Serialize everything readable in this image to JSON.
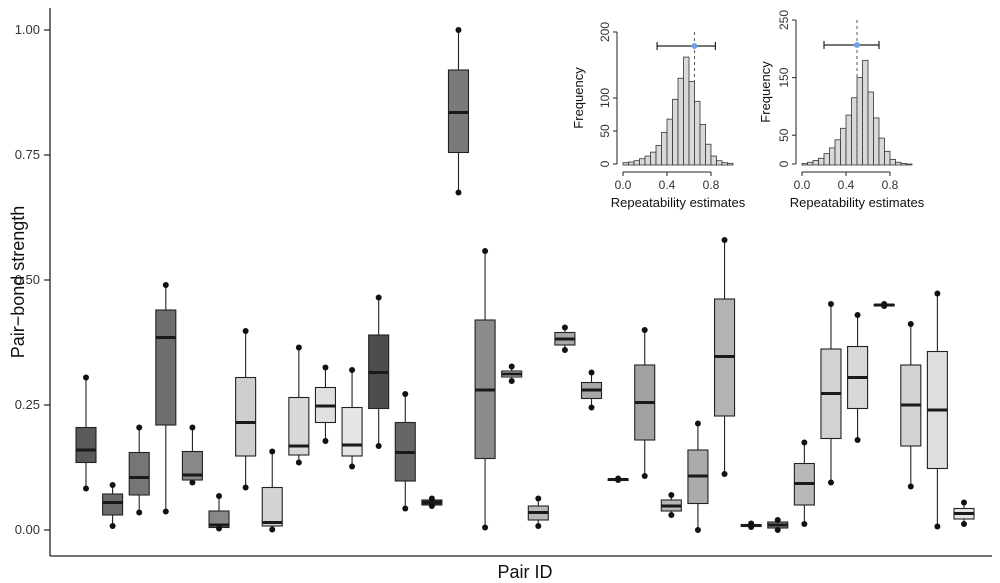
{
  "chart_data": [
    {
      "type": "boxplot",
      "title": "",
      "xlabel": "Pair ID",
      "ylabel": "Pair−bond strength",
      "ylim": [
        0,
        1
      ],
      "y_ticks": [
        "0.00",
        "0.25",
        "0.50",
        "0.75",
        "1.00"
      ],
      "grid": false,
      "boxes": [
        {
          "color": "#595959",
          "whisker_low": 0.083,
          "q1": 0.135,
          "median": 0.16,
          "q3": 0.205,
          "whisker_high": 0.305
        },
        {
          "color": "#6b6b6b",
          "whisker_low": 0.008,
          "q1": 0.03,
          "median": 0.055,
          "q3": 0.072,
          "whisker_high": 0.09
        },
        {
          "color": "#767676",
          "whisker_low": 0.035,
          "q1": 0.07,
          "median": 0.105,
          "q3": 0.155,
          "whisker_high": 0.205
        },
        {
          "color": "#6e6e6e",
          "whisker_low": 0.037,
          "q1": 0.21,
          "median": 0.385,
          "q3": 0.44,
          "whisker_high": 0.49
        },
        {
          "color": "#888888",
          "whisker_low": 0.095,
          "q1": 0.1,
          "median": 0.11,
          "q3": 0.157,
          "whisker_high": 0.205
        },
        {
          "color": "#888888",
          "whisker_low": 0.003,
          "q1": 0.005,
          "median": 0.01,
          "q3": 0.038,
          "whisker_high": 0.068
        },
        {
          "color": "#cfcfcf",
          "whisker_low": 0.085,
          "q1": 0.148,
          "median": 0.215,
          "q3": 0.305,
          "whisker_high": 0.398
        },
        {
          "color": "#d4d4d4",
          "whisker_low": 0.001,
          "q1": 0.008,
          "median": 0.015,
          "q3": 0.085,
          "whisker_high": 0.157
        },
        {
          "color": "#d8d8d8",
          "whisker_low": 0.135,
          "q1": 0.15,
          "median": 0.168,
          "q3": 0.265,
          "whisker_high": 0.365
        },
        {
          "color": "#e0e0e0",
          "whisker_low": 0.178,
          "q1": 0.215,
          "median": 0.248,
          "q3": 0.285,
          "whisker_high": 0.325
        },
        {
          "color": "#e6e6e6",
          "whisker_low": 0.127,
          "q1": 0.148,
          "median": 0.17,
          "q3": 0.245,
          "whisker_high": 0.32
        },
        {
          "color": "#4d4d4d",
          "whisker_low": 0.168,
          "q1": 0.243,
          "median": 0.315,
          "q3": 0.39,
          "whisker_high": 0.465
        },
        {
          "color": "#666666",
          "whisker_low": 0.043,
          "q1": 0.098,
          "median": 0.155,
          "q3": 0.215,
          "whisker_high": 0.272
        },
        {
          "color": "#333333",
          "whisker_low": 0.048,
          "q1": 0.05,
          "median": 0.055,
          "q3": 0.06,
          "whisker_high": 0.063
        },
        {
          "color": "#7a7a7a",
          "whisker_low": 0.675,
          "q1": 0.755,
          "median": 0.835,
          "q3": 0.92,
          "whisker_high": 1.0
        },
        {
          "color": "#8c8c8c",
          "whisker_low": 0.005,
          "q1": 0.143,
          "median": 0.28,
          "q3": 0.42,
          "whisker_high": 0.558
        },
        {
          "color": "#c8c8c8",
          "whisker_low": 0.298,
          "q1": 0.306,
          "median": 0.312,
          "q3": 0.318,
          "whisker_high": 0.327
        },
        {
          "color": "#b8b8b8",
          "whisker_low": 0.008,
          "q1": 0.02,
          "median": 0.035,
          "q3": 0.048,
          "whisker_high": 0.063
        },
        {
          "color": "#a8a8a8",
          "whisker_low": 0.36,
          "q1": 0.37,
          "median": 0.382,
          "q3": 0.395,
          "whisker_high": 0.405
        },
        {
          "color": "#a8a8a8",
          "whisker_low": 0.245,
          "q1": 0.263,
          "median": 0.28,
          "q3": 0.295,
          "whisker_high": 0.315
        },
        {
          "color": "#bbbbbb",
          "whisker_low": 0.1,
          "q1": 0.1,
          "median": 0.101,
          "q3": 0.102,
          "whisker_high": 0.103
        },
        {
          "color": "#a2a2a2",
          "whisker_low": 0.108,
          "q1": 0.18,
          "median": 0.255,
          "q3": 0.33,
          "whisker_high": 0.4
        },
        {
          "color": "#b8b8b8",
          "whisker_low": 0.03,
          "q1": 0.038,
          "median": 0.048,
          "q3": 0.06,
          "whisker_high": 0.07
        },
        {
          "color": "#ababab",
          "whisker_low": 0.0,
          "q1": 0.053,
          "median": 0.108,
          "q3": 0.16,
          "whisker_high": 0.213
        },
        {
          "color": "#b3b3b3",
          "whisker_low": 0.112,
          "q1": 0.228,
          "median": 0.347,
          "q3": 0.462,
          "whisker_high": 0.58
        },
        {
          "color": "#b8b8b8",
          "whisker_low": 0.006,
          "q1": 0.007,
          "median": 0.009,
          "q3": 0.011,
          "whisker_high": 0.013
        },
        {
          "color": "#888888",
          "whisker_low": 0.0,
          "q1": 0.004,
          "median": 0.01,
          "q3": 0.016,
          "whisker_high": 0.02
        },
        {
          "color": "#b8b8b8",
          "whisker_low": 0.012,
          "q1": 0.05,
          "median": 0.093,
          "q3": 0.133,
          "whisker_high": 0.175
        },
        {
          "color": "#d2d2d2",
          "whisker_low": 0.095,
          "q1": 0.183,
          "median": 0.273,
          "q3": 0.362,
          "whisker_high": 0.452
        },
        {
          "color": "#d8d8d8",
          "whisker_low": 0.18,
          "q1": 0.243,
          "median": 0.305,
          "q3": 0.367,
          "whisker_high": 0.43
        },
        {
          "color": "#d0d0d0",
          "whisker_low": 0.448,
          "q1": 0.449,
          "median": 0.45,
          "q3": 0.451,
          "whisker_high": 0.452
        },
        {
          "color": "#d2d2d2",
          "whisker_low": 0.087,
          "q1": 0.168,
          "median": 0.25,
          "q3": 0.33,
          "whisker_high": 0.412
        },
        {
          "color": "#dedede",
          "whisker_low": 0.007,
          "q1": 0.123,
          "median": 0.24,
          "q3": 0.357,
          "whisker_high": 0.473
        },
        {
          "color": "#e6e6e6",
          "whisker_low": 0.012,
          "q1": 0.022,
          "median": 0.033,
          "q3": 0.043,
          "whisker_high": 0.055
        }
      ]
    },
    {
      "type": "bar",
      "subtype": "histogram",
      "xlabel": "Repeatability estimates",
      "ylabel": "Frequency",
      "xlim": [
        0,
        1
      ],
      "ylim": [
        0,
        200
      ],
      "x_ticks": [
        "0.0",
        "0.4",
        "0.8"
      ],
      "y_ticks": [
        "0",
        "50",
        "100",
        "200"
      ],
      "bin_start": 0.0,
      "bin_width": 0.05,
      "counts": [
        2,
        3,
        5,
        8,
        12,
        18,
        28,
        48,
        68,
        98,
        130,
        162,
        125,
        95,
        60,
        30,
        12,
        5,
        2,
        1
      ],
      "point_estimate": 0.65,
      "interval": [
        0.31,
        0.84
      ],
      "point_color": "#6fa3e0"
    },
    {
      "type": "bar",
      "subtype": "histogram",
      "xlabel": "Repeatability estimates",
      "ylabel": "Frequency",
      "xlim": [
        0,
        1
      ],
      "ylim": [
        0,
        250
      ],
      "x_ticks": [
        "0.0",
        "0.4",
        "0.8"
      ],
      "y_ticks": [
        "0",
        "50",
        "150",
        "250"
      ],
      "bin_start": 0.0,
      "bin_width": 0.05,
      "counts": [
        1,
        3,
        6,
        10,
        18,
        28,
        42,
        62,
        85,
        115,
        150,
        180,
        125,
        80,
        45,
        22,
        8,
        3,
        1,
        0
      ],
      "point_estimate": 0.5,
      "interval": [
        0.2,
        0.7
      ],
      "point_color": "#6fa3e0"
    }
  ]
}
